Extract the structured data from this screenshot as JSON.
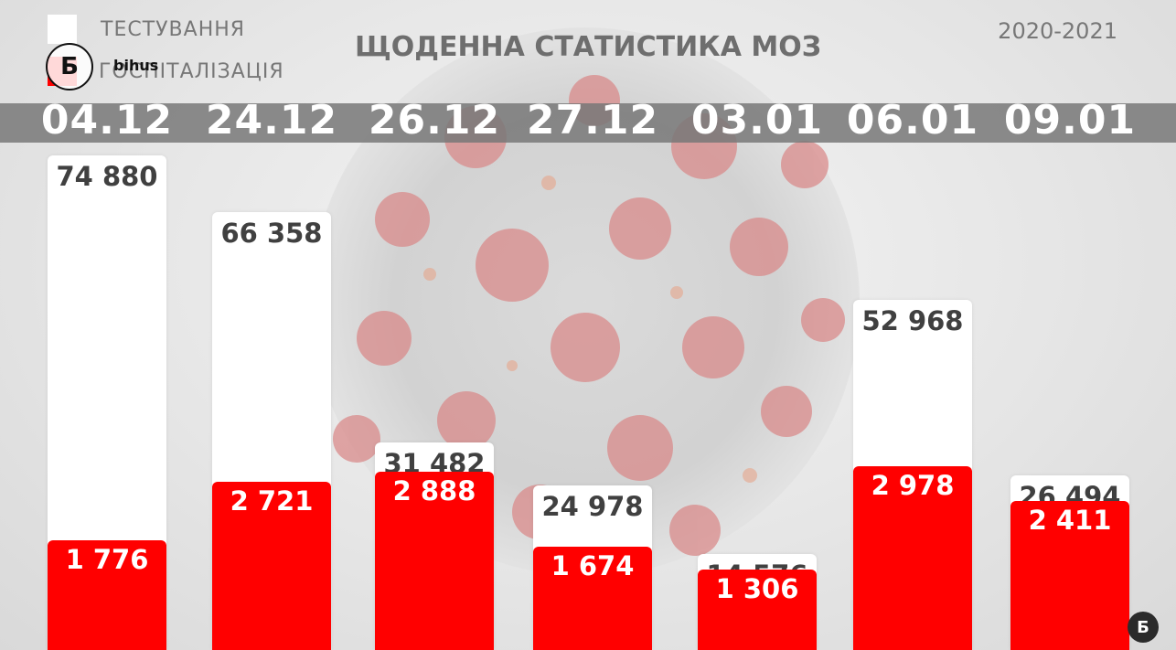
{
  "header": {
    "title": "ЩОДЕННА СТАТИСТИКА МОЗ",
    "years": "2020-2021"
  },
  "legend": {
    "testing_label": "ТЕСТУВАННЯ",
    "hospitalization_label": "ГОСПІТАЛІЗАЦІЯ",
    "testing_color": "#ffffff",
    "hospitalization_color": "#ff0000"
  },
  "branding": {
    "logo_glyph": "Б",
    "logo_text": "bihus"
  },
  "chart_data": {
    "type": "bar",
    "title": "ЩОДЕННА СТАТИСТИКА МОЗ",
    "categories": [
      "04.12",
      "24.12",
      "26.12",
      "27.12",
      "03.01",
      "06.01",
      "09.01"
    ],
    "series": [
      {
        "name": "ТЕСТУВАННЯ",
        "color": "#ffffff",
        "values": [
          74880,
          66358,
          31482,
          24978,
          14576,
          52968,
          26494
        ],
        "labels": [
          "74 880",
          "66 358",
          "31 482",
          "24 978",
          "14 576",
          "52 968",
          "26 494"
        ]
      },
      {
        "name": "ГОСПІТАЛІЗАЦІЯ",
        "color": "#ff0000",
        "values": [
          1776,
          2721,
          2888,
          1674,
          1306,
          2978,
          2411
        ],
        "labels": [
          "1 776",
          "2 721",
          "2 888",
          "1 674",
          "1 306",
          "2 978",
          "2 411"
        ]
      }
    ],
    "legend_position": "top-left",
    "grid": false
  }
}
